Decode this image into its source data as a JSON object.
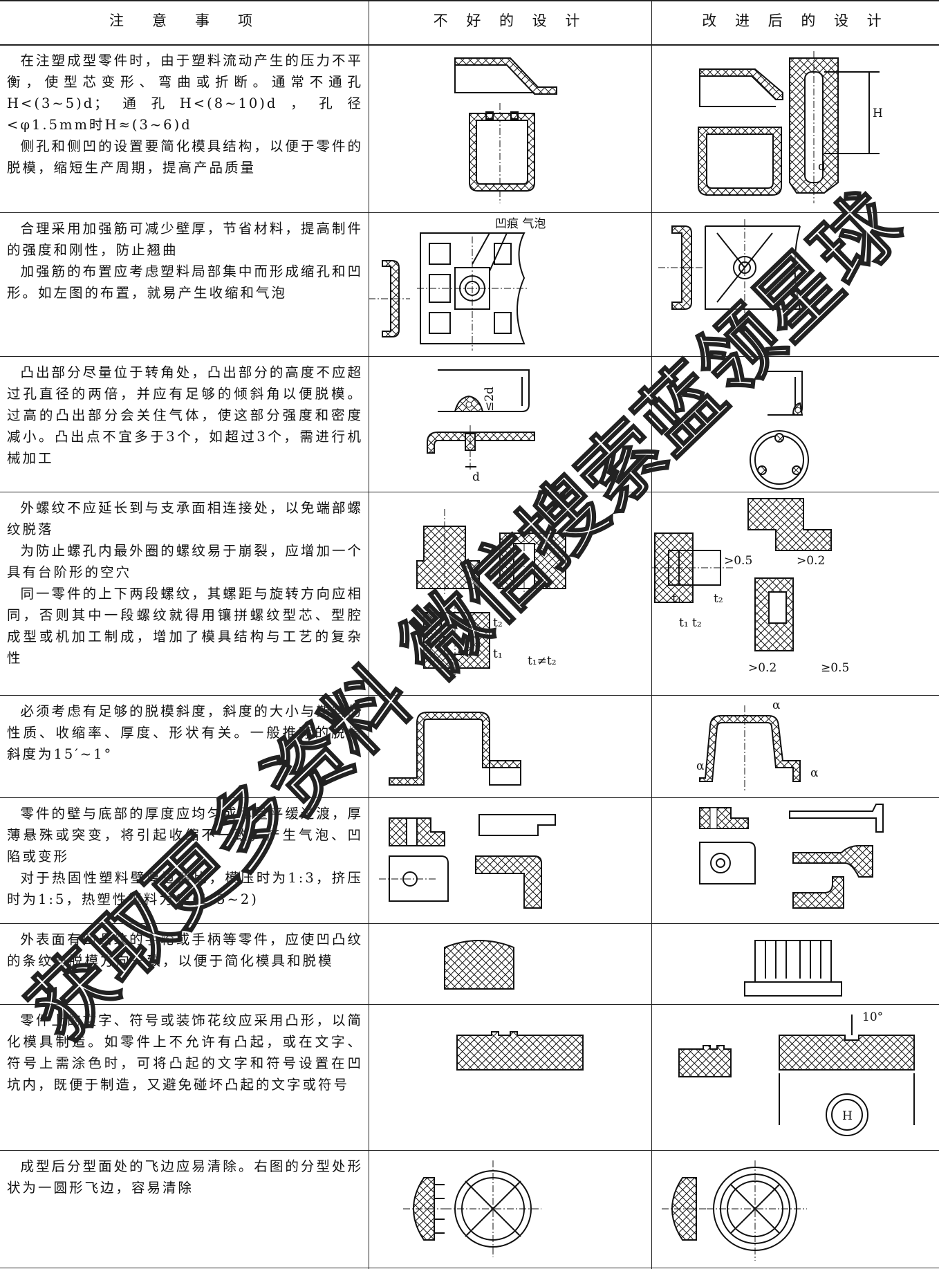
{
  "header": [
    "注　意　事　项",
    "不 好 的 设 计",
    "改 进 后 的 设 计"
  ],
  "rows": [
    {
      "notes": [
        "在注塑成型零件时，由于塑料流动产生的压力不平衡，使型芯变形、弯曲或折断。通常不通孔H<(3~5)d；通孔H<(8~10)d，孔径<φ1.5mm时H≈(3~6)d",
        "侧孔和侧凹的设置要简化模具结构，以便于零件的脱模，缩短生产周期，提高产品质量"
      ],
      "good_labels": [
        "H",
        "d"
      ]
    },
    {
      "notes": [
        "合理采用加强筋可减少壁厚，节省材料，提高制件的强度和刚性，防止翘曲",
        "加强筋的布置应考虑塑料局部集中而形成缩孔和凹形。如左图的布置，就易产生收缩和气泡"
      ],
      "bad_labels": [
        "凹痕 气泡"
      ]
    },
    {
      "notes": [
        "凸出部分尽量位于转角处，凸出部分的高度不应超过孔直径的两倍，并应有足够的倾斜角以便脱模。过高的凸出部分会关住气体，使这部分强度和密度减小。凸出点不宜多于3个，如超过3个，需进行机械加工"
      ],
      "bad_labels": [
        "≤2d",
        "d"
      ]
    },
    {
      "notes": [
        "外螺纹不应延长到与支承面相连接处，以免端部螺纹脱落",
        "为防止螺孔内最外圈的螺纹易于崩裂，应增加一个具有台阶形的空穴",
        "同一零件的上下两段螺纹，其螺距与旋转方向应相同，否则其中一段螺纹就得用镶拼螺纹型芯、型腔成型或机加工制成，增加了模具结构与工艺的复杂性"
      ],
      "bad_labels": [
        "t₂",
        "t₁",
        "t₁≠t₂"
      ],
      "good_labels": [
        ">0.5",
        ">0.2",
        "t₁",
        "t₂",
        "t₁ t₂",
        ">0.2",
        "≥0.5"
      ]
    },
    {
      "notes": [
        "必须考虑有足够的脱模斜度，斜度的大小与塑料的性质、收缩率、厚度、形状有关。一般推荐的脱模斜度为15′~1°"
      ],
      "good_labels": [
        "α",
        "α",
        "α"
      ]
    },
    {
      "notes": [
        "零件的壁与底部的厚度应均匀或尽量平缓过渡，厚薄悬殊或突变，将引起收缩不一致，产生气泡、凹陷或变形",
        "对于热固性塑料壁厚过渡比，模压时为1:3，挤压时为1:5，热塑性塑料为1:(1.5~2)"
      ]
    },
    {
      "notes": [
        "外表面有凹凸纹的手轮或手柄等零件，应使凹凸纹的条纹与脱模方向一致，以便于简化模具和脱模"
      ]
    },
    {
      "notes": [
        "零件上的文字、符号或装饰花纹应采用凸形，以简化模具制造。如零件上不允许有凸起，或在文字、符号上需涂色时，可将凸起的文字和符号设置在凹坑内，既便于制造，又避免碰坏凸起的文字或符号"
      ],
      "good_labels": [
        "10°",
        "H"
      ]
    },
    {
      "notes": [
        "成型后分型面处的飞边应易清除。右图的分型处形状为一圆形飞边，容易清除"
      ]
    }
  ],
  "watermark": "获取更多资料 微信搜索蓝领星球"
}
